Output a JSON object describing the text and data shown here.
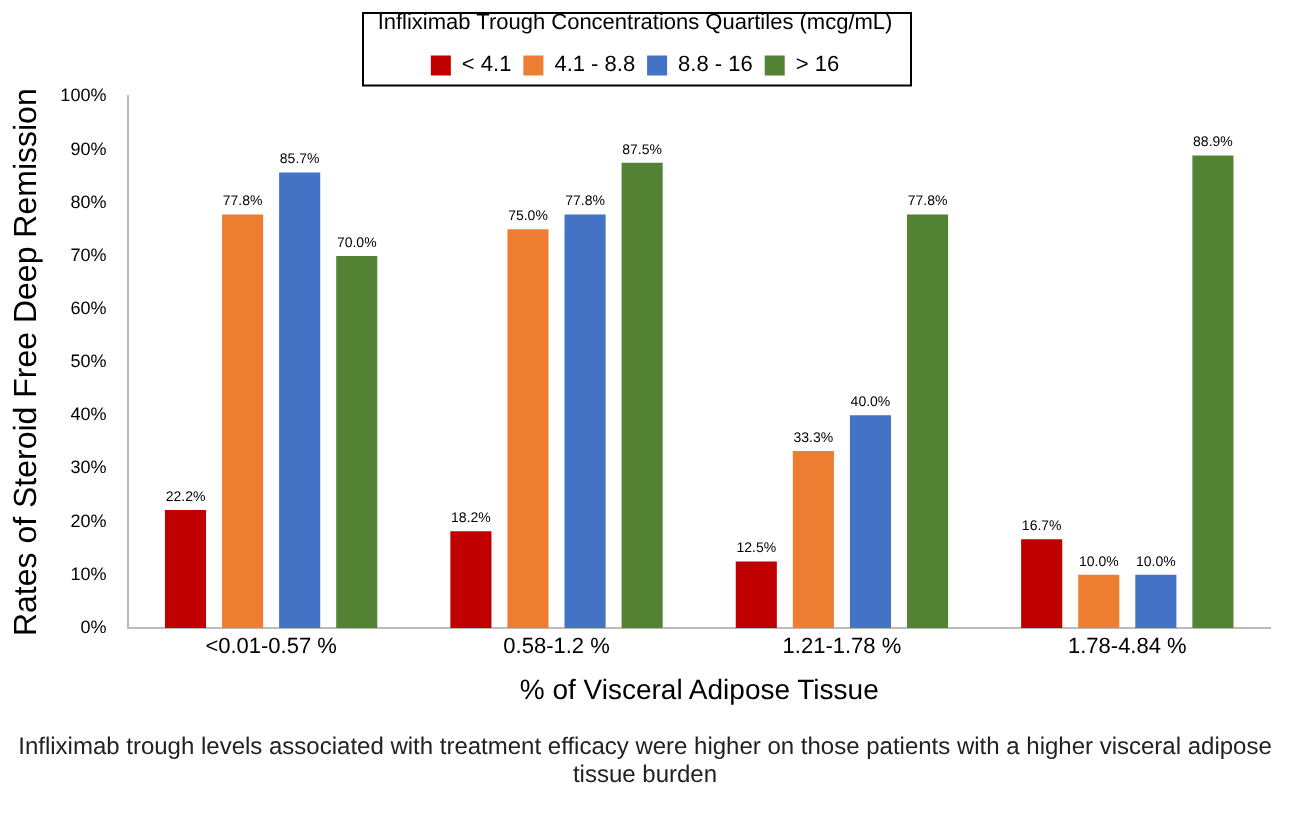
{
  "chart_data": {
    "type": "bar",
    "xlabel": "% of Visceral Adipose Tissue",
    "ylabel": "Rates of Steroid Free Deep Remission",
    "legend_title": "Infliximab Trough Concentrations Quartiles (mcg/mL)",
    "legend": "top",
    "grid": false,
    "categories": [
      "<0.01-0.57 %",
      "0.58-1.2 %",
      "1.21-1.78 %",
      "1.78-4.84 %"
    ],
    "ylim": [
      0,
      100
    ],
    "yticks": [
      {
        "value": 0,
        "label": "0%"
      },
      {
        "value": 10,
        "label": "10%"
      },
      {
        "value": 20,
        "label": "20%"
      },
      {
        "value": 30,
        "label": "30%"
      },
      {
        "value": 40,
        "label": "40%"
      },
      {
        "value": 50,
        "label": "50%"
      },
      {
        "value": 60,
        "label": "60%"
      },
      {
        "value": 70,
        "label": "70%"
      },
      {
        "value": 80,
        "label": "80%"
      },
      {
        "value": 90,
        "label": "90%"
      },
      {
        "value": 100,
        "label": "100%"
      }
    ],
    "series": [
      {
        "name": "< 4.1",
        "color": "#c00000",
        "values": [
          22.2,
          18.2,
          12.5,
          16.7
        ],
        "value_labels": [
          "22.2%",
          "18.2%",
          "12.5%",
          "16.7%"
        ]
      },
      {
        "name": "4.1 - 8.8",
        "color": "#ed7d31",
        "values": [
          77.8,
          75.0,
          33.3,
          10.0
        ],
        "value_labels": [
          "77.8%",
          "75.0%",
          "33.3%",
          "10.0%"
        ]
      },
      {
        "name": "8.8 - 16",
        "color": "#4472c4",
        "values": [
          85.7,
          77.8,
          40.0,
          10.0
        ],
        "value_labels": [
          "85.7%",
          "77.8%",
          "40.0%",
          "10.0%"
        ]
      },
      {
        "name": "> 16",
        "color": "#548235",
        "values": [
          70.0,
          87.5,
          77.8,
          88.9
        ],
        "value_labels": [
          "70.0%",
          "87.5%",
          "77.8%",
          "88.9%"
        ]
      }
    ],
    "annotations": [
      "Infliximab trough levels associated with treatment efficacy were higher on those patients with a higher visceral adipose tissue burden"
    ]
  }
}
